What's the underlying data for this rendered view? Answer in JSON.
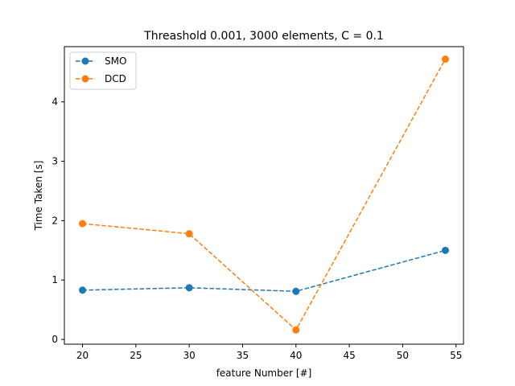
{
  "chart_data": {
    "type": "line",
    "title": "Threashold 0.001, 3000 elements,  C = 0.1",
    "xlabel": "feature Number [#]",
    "ylabel": "Time Taken [s]",
    "xlim": [
      18.3,
      55.7
    ],
    "ylim": [
      -0.08,
      4.93
    ],
    "xticks": [
      20,
      25,
      30,
      35,
      40,
      45,
      50,
      55
    ],
    "yticks": [
      0,
      1,
      2,
      3,
      4
    ],
    "grid": false,
    "legend_position": "top-left",
    "series": [
      {
        "name": "SMO",
        "color": "#1f77b4",
        "linestyle": "dashed",
        "marker": "circle",
        "x": [
          20,
          30,
          40,
          54
        ],
        "y": [
          0.83,
          0.87,
          0.81,
          1.5
        ]
      },
      {
        "name": "DCD",
        "color": "#ff7f0e",
        "linestyle": "dashed",
        "marker": "circle",
        "x": [
          20,
          30,
          40,
          54
        ],
        "y": [
          1.95,
          1.78,
          0.16,
          4.72
        ]
      }
    ]
  }
}
